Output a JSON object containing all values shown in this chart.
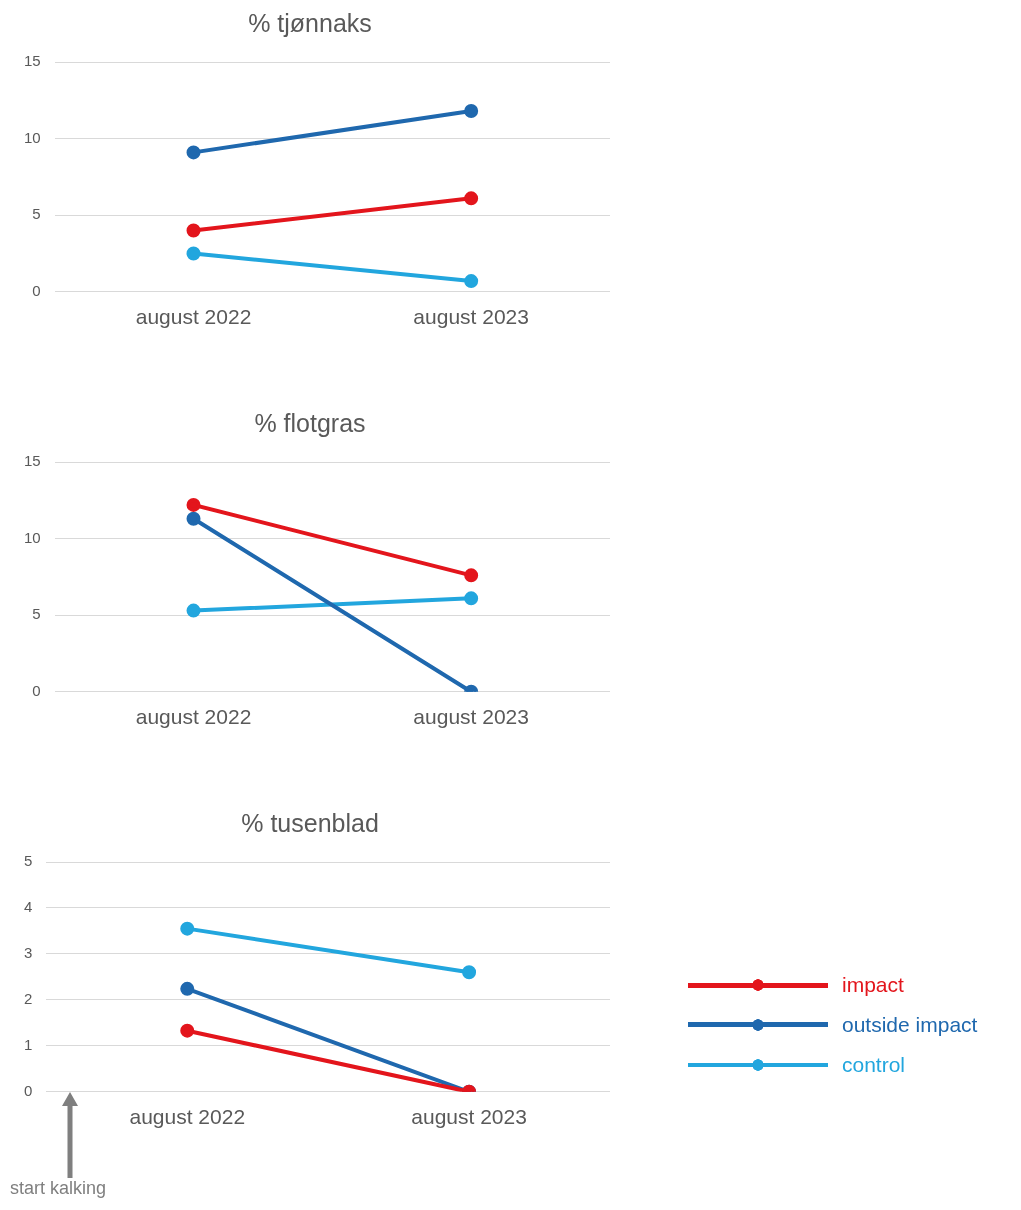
{
  "chart_data": [
    {
      "type": "line",
      "title": "% tjønnaks",
      "categories": [
        "august 2022",
        "august 2023"
      ],
      "ylim": [
        0,
        15
      ],
      "yticks": [
        0,
        5,
        10,
        15
      ],
      "grid": "y",
      "marker": "circle",
      "line_style": "solid",
      "series": [
        {
          "color": "#e3151c",
          "values": [
            4.0,
            6.1
          ]
        },
        {
          "color": "#1f68ae",
          "values": [
            9.1,
            11.8
          ]
        },
        {
          "color": "#22a6de",
          "values": [
            2.5,
            0.7
          ]
        }
      ]
    },
    {
      "type": "line",
      "title": "% flotgras",
      "categories": [
        "august 2022",
        "august 2023"
      ],
      "ylim": [
        0,
        15
      ],
      "yticks": [
        0,
        5,
        10,
        15
      ],
      "grid": "y",
      "marker": "circle",
      "line_style": "solid",
      "series": [
        {
          "color": "#e3151c",
          "values": [
            12.2,
            7.6
          ]
        },
        {
          "color": "#1f68ae",
          "values": [
            11.3,
            0
          ]
        },
        {
          "color": "#22a6de",
          "values": [
            5.3,
            6.1
          ]
        }
      ]
    },
    {
      "type": "line",
      "title": "% tusenblad",
      "categories": [
        "august 2022",
        "august 2023"
      ],
      "ylim": [
        0,
        5
      ],
      "yticks": [
        0,
        1,
        2,
        3,
        4,
        5
      ],
      "grid": "y",
      "marker": "circle",
      "line_style": "solid",
      "legend": "right",
      "annotations": [
        "start kalking"
      ],
      "series": [
        {
          "name": "impact",
          "color": "#e3151c",
          "values": [
            1.33,
            0
          ]
        },
        {
          "name": "outside impact",
          "color": "#1f68ae",
          "values": [
            2.24,
            0
          ]
        },
        {
          "name": "control",
          "color": "#22a6de",
          "values": [
            3.55,
            2.6
          ]
        }
      ]
    }
  ]
}
